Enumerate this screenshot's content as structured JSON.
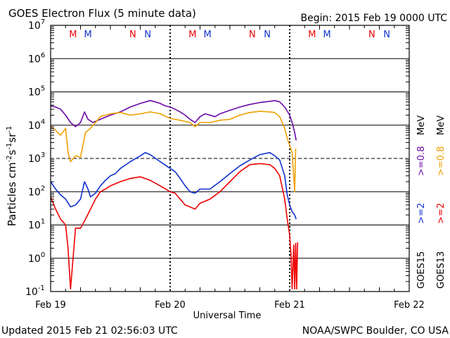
{
  "header": {
    "title": "GOES Electron Flux (5 minute data)",
    "begin": "Begin: 2015 Feb 19 0000 UTC"
  },
  "footer": {
    "updated": "Updated 2015 Feb 21 02:56:03 UTC",
    "credit": "NOAA/SWPC Boulder, CO USA"
  },
  "colors": {
    "goes13_2mev": "#ee0000",
    "goes15_2mev": "#1030d0",
    "goes13_08mev": "#f0a000",
    "goes15_08mev": "#6a0aa8",
    "m_marker": "#ee0000",
    "n_marker_alt": "#1030d0"
  },
  "chart_data": {
    "type": "line",
    "title": "GOES Electron Flux (5 minute data)",
    "xlabel": "Universal Time",
    "ylabel_parts": {
      "main": "Particles cm",
      "e1": "-2",
      "s": "s",
      "e2": "-1",
      "sr": "sr",
      "e3": "-1"
    },
    "yscale": "log",
    "ylim": [
      0.1,
      10000000
    ],
    "xlim": [
      0,
      72
    ],
    "x_unit": "hours since 2015 Feb 19 0000 UTC",
    "x_ticks": [
      {
        "x": 0,
        "label": "Feb 19"
      },
      {
        "x": 24,
        "label": "Feb 20"
      },
      {
        "x": 48,
        "label": "Feb 21"
      },
      {
        "x": 72,
        "label": "Feb 22"
      }
    ],
    "y_ticks": [
      {
        "value": 0.1,
        "base": "10",
        "exp": "-1"
      },
      {
        "value": 1,
        "base": "10",
        "exp": "0"
      },
      {
        "value": 10,
        "base": "10",
        "exp": "1"
      },
      {
        "value": 100,
        "base": "10",
        "exp": "2"
      },
      {
        "value": 1000,
        "base": "10",
        "exp": "3"
      },
      {
        "value": 10000,
        "base": "10",
        "exp": "4"
      },
      {
        "value": 100000,
        "base": "10",
        "exp": "5"
      },
      {
        "value": 1000000,
        "base": "10",
        "exp": "6"
      },
      {
        "value": 10000000,
        "base": "10",
        "exp": "7"
      }
    ],
    "threshold": 1000,
    "right_labels": {
      "goes15": "GOES15",
      "goes13": "GOES13",
      "goes15_2mev": ">=2",
      "goes13_2mev": ">=2",
      "goes15_08mev": ">=0.8",
      "goes13_08mev": ">=0.8",
      "unit": "MeV"
    },
    "markers": [
      {
        "x": 4.5,
        "label": "M"
      },
      {
        "x": 7.5,
        "label": "M"
      },
      {
        "x": 16.5,
        "label": "N"
      },
      {
        "x": 19.5,
        "label": "N"
      },
      {
        "x": 28.5,
        "label": "M"
      },
      {
        "x": 31.5,
        "label": "M"
      },
      {
        "x": 40.5,
        "label": "N"
      },
      {
        "x": 43.5,
        "label": "N"
      },
      {
        "x": 52.5,
        "label": "M"
      },
      {
        "x": 55.5,
        "label": "M"
      },
      {
        "x": 64.5,
        "label": "N"
      },
      {
        "x": 67.5,
        "label": "N"
      }
    ],
    "series": [
      {
        "name": "GOES15 >=0.8 MeV",
        "color": "#6a0aa8",
        "points": [
          [
            0,
            38000
          ],
          [
            1,
            35000
          ],
          [
            2,
            30000
          ],
          [
            3,
            20000
          ],
          [
            4,
            12000
          ],
          [
            5,
            9000
          ],
          [
            6,
            12000
          ],
          [
            6.8,
            25000
          ],
          [
            7.5,
            15000
          ],
          [
            8.5,
            12000
          ],
          [
            10,
            15000
          ],
          [
            12,
            20000
          ],
          [
            14,
            25000
          ],
          [
            16,
            35000
          ],
          [
            18,
            45000
          ],
          [
            20,
            55000
          ],
          [
            21,
            50000
          ],
          [
            22,
            45000
          ],
          [
            23,
            38000
          ],
          [
            24,
            35000
          ],
          [
            25,
            30000
          ],
          [
            26,
            25000
          ],
          [
            27,
            20000
          ],
          [
            28,
            15000
          ],
          [
            29,
            12000
          ],
          [
            30,
            18000
          ],
          [
            31,
            22000
          ],
          [
            32,
            20000
          ],
          [
            33,
            18000
          ],
          [
            34,
            22000
          ],
          [
            36,
            28000
          ],
          [
            38,
            35000
          ],
          [
            40,
            42000
          ],
          [
            42,
            48000
          ],
          [
            44,
            52000
          ],
          [
            45,
            55000
          ],
          [
            46,
            50000
          ],
          [
            47,
            35000
          ],
          [
            48,
            20000
          ],
          [
            48.5,
            12000
          ],
          [
            49,
            6000
          ],
          [
            49.3,
            3500
          ]
        ]
      },
      {
        "name": "GOES13 >=0.8 MeV",
        "color": "#f0a000",
        "points": [
          [
            0,
            9000
          ],
          [
            1,
            7000
          ],
          [
            2,
            5000
          ],
          [
            3,
            8000
          ],
          [
            3.5,
            1500
          ],
          [
            4,
            800
          ],
          [
            5,
            1200
          ],
          [
            6,
            1100
          ],
          [
            7,
            6000
          ],
          [
            8,
            8000
          ],
          [
            9,
            12000
          ],
          [
            10,
            18000
          ],
          [
            12,
            22000
          ],
          [
            14,
            24000
          ],
          [
            16,
            20000
          ],
          [
            18,
            22000
          ],
          [
            20,
            25000
          ],
          [
            22,
            22000
          ],
          [
            24,
            16000
          ],
          [
            26,
            14000
          ],
          [
            28,
            12000
          ],
          [
            29,
            9000
          ],
          [
            30,
            12000
          ],
          [
            32,
            12000
          ],
          [
            34,
            14000
          ],
          [
            36,
            15000
          ],
          [
            38,
            20000
          ],
          [
            40,
            24000
          ],
          [
            42,
            26000
          ],
          [
            44,
            25000
          ],
          [
            45,
            24000
          ],
          [
            46,
            18000
          ],
          [
            47,
            8000
          ],
          [
            47.5,
            4000
          ],
          [
            48,
            2500
          ],
          [
            48.5,
            1500
          ],
          [
            48.8,
            300
          ],
          [
            49,
            100
          ],
          [
            49.2,
            2000
          ]
        ]
      },
      {
        "name": "GOES15 >=2 MeV",
        "color": "#1030d0",
        "points": [
          [
            0,
            200
          ],
          [
            1,
            120
          ],
          [
            2,
            80
          ],
          [
            3,
            60
          ],
          [
            4,
            35
          ],
          [
            5,
            40
          ],
          [
            6,
            60
          ],
          [
            6.8,
            200
          ],
          [
            7.5,
            120
          ],
          [
            8,
            70
          ],
          [
            9,
            90
          ],
          [
            10,
            150
          ],
          [
            11,
            220
          ],
          [
            12,
            300
          ],
          [
            13,
            350
          ],
          [
            14,
            500
          ],
          [
            16,
            800
          ],
          [
            18,
            1200
          ],
          [
            19,
            1500
          ],
          [
            20,
            1300
          ],
          [
            22,
            800
          ],
          [
            24,
            500
          ],
          [
            25,
            400
          ],
          [
            26,
            250
          ],
          [
            27,
            150
          ],
          [
            28,
            100
          ],
          [
            29,
            90
          ],
          [
            30,
            120
          ],
          [
            32,
            120
          ],
          [
            34,
            200
          ],
          [
            36,
            350
          ],
          [
            38,
            600
          ],
          [
            40,
            900
          ],
          [
            42,
            1300
          ],
          [
            44,
            1500
          ],
          [
            45,
            1200
          ],
          [
            46,
            900
          ],
          [
            47,
            300
          ],
          [
            47.5,
            80
          ],
          [
            48,
            40
          ],
          [
            48.5,
            25
          ],
          [
            49,
            20
          ],
          [
            49.3,
            15
          ]
        ]
      },
      {
        "name": "GOES13 >=2 MeV",
        "color": "#ee0000",
        "points": [
          [
            0,
            70
          ],
          [
            1,
            30
          ],
          [
            2,
            15
          ],
          [
            3,
            10
          ],
          [
            3.5,
            2
          ],
          [
            4,
            0.12
          ],
          [
            4.5,
            1
          ],
          [
            5,
            8
          ],
          [
            6,
            8
          ],
          [
            7,
            15
          ],
          [
            8,
            30
          ],
          [
            9,
            60
          ],
          [
            10,
            100
          ],
          [
            11,
            120
          ],
          [
            12,
            150
          ],
          [
            14,
            200
          ],
          [
            16,
            250
          ],
          [
            18,
            280
          ],
          [
            20,
            220
          ],
          [
            22,
            150
          ],
          [
            24,
            100
          ],
          [
            25,
            90
          ],
          [
            26,
            60
          ],
          [
            27,
            40
          ],
          [
            28,
            35
          ],
          [
            29,
            30
          ],
          [
            30,
            45
          ],
          [
            32,
            60
          ],
          [
            34,
            100
          ],
          [
            36,
            200
          ],
          [
            38,
            400
          ],
          [
            40,
            650
          ],
          [
            42,
            700
          ],
          [
            44,
            650
          ],
          [
            45,
            500
          ],
          [
            46,
            300
          ],
          [
            47,
            60
          ],
          [
            47.5,
            15
          ],
          [
            48,
            5
          ],
          [
            48.3,
            1
          ],
          [
            48.5,
            0.12
          ],
          [
            48.8,
            2.5
          ],
          [
            49,
            0.12
          ],
          [
            49.2,
            2.8
          ],
          [
            49.4,
            0.12
          ],
          [
            49.6,
            3
          ]
        ]
      }
    ]
  }
}
